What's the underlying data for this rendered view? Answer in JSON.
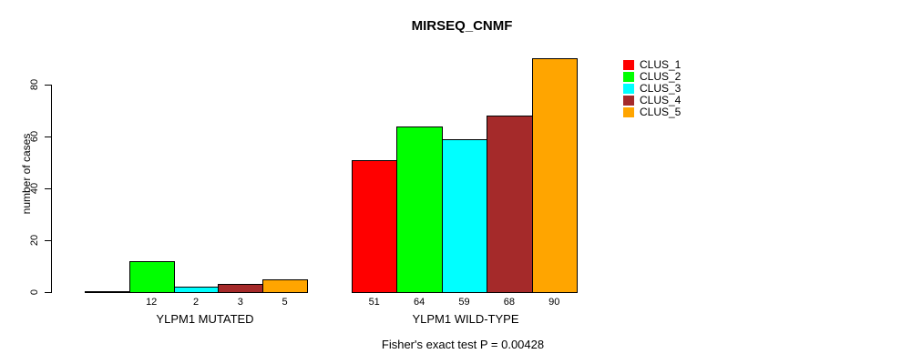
{
  "chart_data": {
    "type": "bar",
    "title": "MIRSEQ_CNMF",
    "ylabel": "number of cases",
    "xlabel": "",
    "ylim": [
      0,
      90
    ],
    "yticks": [
      0,
      20,
      40,
      60,
      80
    ],
    "grid": false,
    "legend_position": "right",
    "categories": [
      "YLPM1 MUTATED",
      "YLPM1 WILD-TYPE"
    ],
    "groups": [
      {
        "label": "YLPM1 MUTATED",
        "values": [
          0,
          12,
          2,
          3,
          5
        ]
      },
      {
        "label": "YLPM1 WILD-TYPE",
        "values": [
          51,
          64,
          59,
          68,
          90
        ]
      }
    ],
    "series": [
      {
        "name": "CLUS_1",
        "color": "#FF0000",
        "values": [
          0,
          51
        ]
      },
      {
        "name": "CLUS_2",
        "color": "#00FF00",
        "values": [
          12,
          64
        ]
      },
      {
        "name": "CLUS_3",
        "color": "#00FFFF",
        "values": [
          2,
          59
        ]
      },
      {
        "name": "CLUS_4",
        "color": "#A52A2A",
        "values": [
          3,
          68
        ]
      },
      {
        "name": "CLUS_5",
        "color": "#FFA500",
        "values": [
          5,
          90
        ]
      }
    ],
    "bar_value_labels_shown": [
      [
        null,
        "12",
        "2",
        "3",
        "5"
      ],
      [
        "51",
        "64",
        "59",
        "68",
        "90"
      ]
    ],
    "annotation": "Fisher's exact test P = 0.00428"
  },
  "legend": {
    "items": [
      {
        "label": "CLUS_1",
        "color": "#FF0000"
      },
      {
        "label": "CLUS_2",
        "color": "#00FF00"
      },
      {
        "label": "CLUS_3",
        "color": "#00FFFF"
      },
      {
        "label": "CLUS_4",
        "color": "#A52A2A"
      },
      {
        "label": "CLUS_5",
        "color": "#FFA500"
      }
    ]
  }
}
